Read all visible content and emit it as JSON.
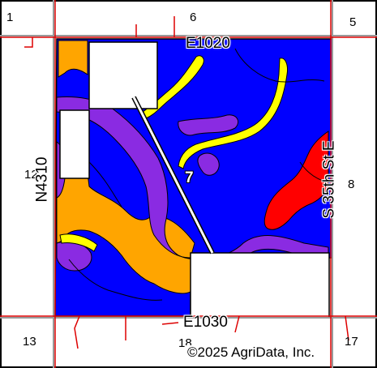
{
  "map": {
    "sections": {
      "nw": "1",
      "n": "6",
      "ne": "5",
      "w": "12",
      "e": "8",
      "sw": "13",
      "s": "18",
      "se": "17"
    },
    "roads": {
      "north": "E1020",
      "south": "E1030",
      "west": "N4310",
      "east": "S 35th St E"
    },
    "field_number": "7",
    "copyright": "©2025 AgriData, Inc.",
    "colors": {
      "blue": "#0000ff",
      "purple": "#8a2be2",
      "orange": "#ffa500",
      "yellow": "#ffff00",
      "red": "#ff0000",
      "outline": "#000000",
      "section_line": "#999999",
      "road_line": "#dd0000"
    }
  }
}
